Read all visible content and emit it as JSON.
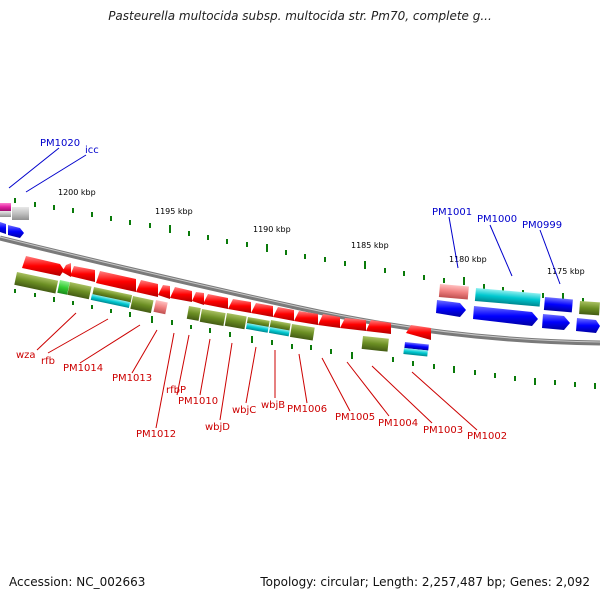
{
  "title": "Pasteurella multocida subsp. multocida str. Pm70, complete g...",
  "footer": {
    "accession": "Accession: NC_002663",
    "topology": "Topology: circular; Length: 2,257,487 bp; Genes: 2,092"
  },
  "colors": {
    "backbone": "#7a7a7a",
    "gene_red": "#ff0000",
    "gene_olive": "#6b8e23",
    "gene_blue": "#0000ff",
    "gene_cyan": "#00c8d0",
    "gene_pink": "#f08080",
    "gene_magenta": "#e020a0",
    "gene_gray": "#c0c0c0",
    "gene_green": "#33cc33",
    "tick": "#0a7a0a",
    "label_red": "#cc0000",
    "label_blue": "#0000cc"
  },
  "scale": {
    "ticks": [
      "1200 kbp",
      "1195 kbp",
      "1190 kbp",
      "1185 kbp",
      "1180 kbp",
      "1175 kbp"
    ]
  },
  "labels": {
    "blue": [
      "PM1020",
      "icc",
      "PM1001",
      "PM1000",
      "PM0999"
    ],
    "red": [
      "wza",
      "rfb",
      "PM1014",
      "PM1013",
      "PM1012",
      "rfbP",
      "PM1010",
      "wbjD",
      "wbjC",
      "wbjB",
      "PM1006",
      "PM1005",
      "PM1004",
      "PM1003",
      "PM1002"
    ]
  }
}
